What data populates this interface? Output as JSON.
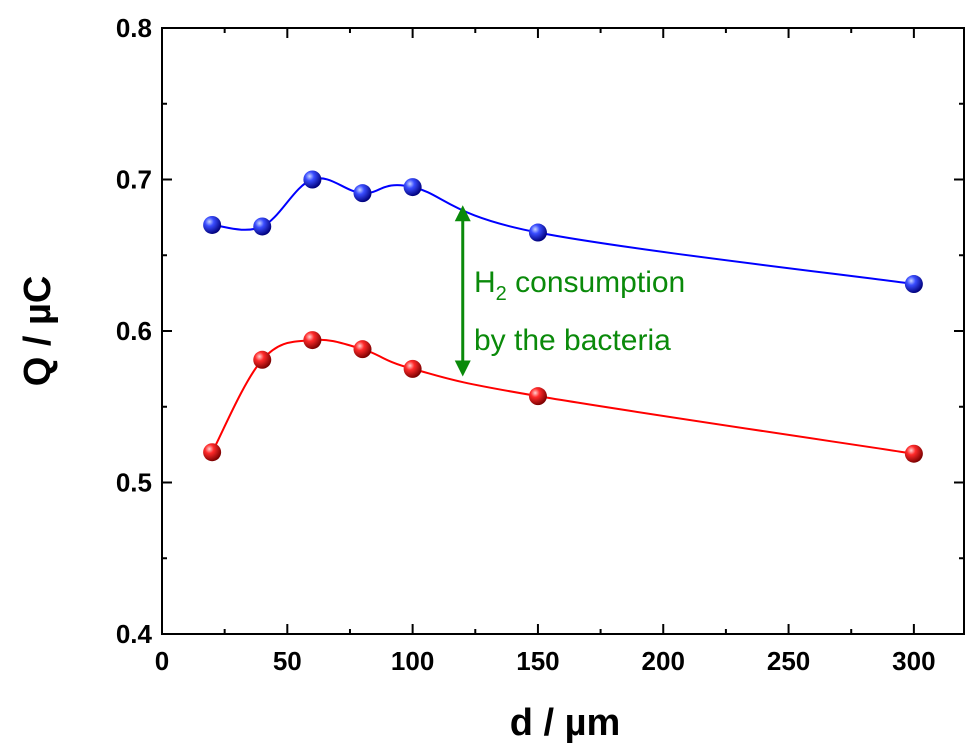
{
  "chart_data": {
    "type": "scatter",
    "xlabel": "d / µm",
    "ylabel": "Q / µC",
    "xlim": [
      0,
      320
    ],
    "ylim": [
      0.4,
      0.8
    ],
    "xticks": [
      "0",
      "50",
      "100",
      "150",
      "200",
      "250",
      "300"
    ],
    "yticks": [
      "0.4",
      "0.5",
      "0.6",
      "0.7",
      "0.8"
    ],
    "grid": false,
    "series": [
      {
        "color": "#0000ff",
        "x": [
          20,
          40,
          60,
          80,
          100,
          150,
          300
        ],
        "y": [
          0.67,
          0.669,
          0.7,
          0.691,
          0.695,
          0.665,
          0.631
        ]
      },
      {
        "color": "#ff0000",
        "x": [
          20,
          40,
          60,
          80,
          100,
          150,
          300
        ],
        "y": [
          0.52,
          0.581,
          0.594,
          0.588,
          0.575,
          0.557,
          0.519
        ]
      }
    ],
    "annotation": {
      "line1_main": "H",
      "line1_sub": "2",
      "line1_rest": " consumption",
      "line2": "by the bacteria",
      "color": "#0a8a0a",
      "arrow_x": 120,
      "arrow_y_top": 0.683,
      "arrow_y_bottom": 0.57
    }
  }
}
